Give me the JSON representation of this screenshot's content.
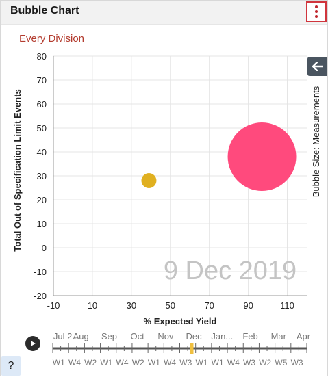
{
  "header": {
    "title": "Bubble Chart",
    "menu_icon": "more-vertical-icon"
  },
  "subtitle": "Every Division",
  "side_panel": {
    "toggle_icon": "arrow-left-icon",
    "label": "Bubble Size: Measurements"
  },
  "date_watermark": "9 Dec 2019",
  "help_label": "?",
  "timeline": {
    "play_icon": "play-icon",
    "months": [
      "Jul 2...",
      "Aug",
      "Sep",
      "Oct",
      "Nov",
      "Dec",
      "Jan...",
      "Feb",
      "Mar",
      "Apr"
    ],
    "weeks": [
      "W1",
      "W4",
      "W2",
      "W1",
      "W4",
      "W2",
      "W1",
      "W4",
      "W3",
      "W1",
      "W1",
      "W4",
      "W3",
      "W2",
      "W5",
      "W3"
    ],
    "current": "Dec W1",
    "colors": {
      "track": "#555555",
      "handle": "#f0c040"
    }
  },
  "chart_data": {
    "type": "scatter",
    "xlabel": "% Expected Yield",
    "ylabel": "Total Out of Specification Limit Events",
    "xlim": [
      -10,
      120
    ],
    "ylim": [
      -20,
      80
    ],
    "x_ticks": [
      "-10",
      "10",
      "30",
      "50",
      "70",
      "90",
      "110"
    ],
    "y_ticks": [
      "80",
      "70",
      "60",
      "50",
      "40",
      "30",
      "20",
      "10",
      "0",
      "-10",
      "-20"
    ],
    "grid": true,
    "points": [
      {
        "x": 39,
        "y": 28,
        "size": 1,
        "color": "#e0b020"
      },
      {
        "x": 97,
        "y": 38,
        "size": 22,
        "color": "#ff4a7d"
      }
    ]
  }
}
